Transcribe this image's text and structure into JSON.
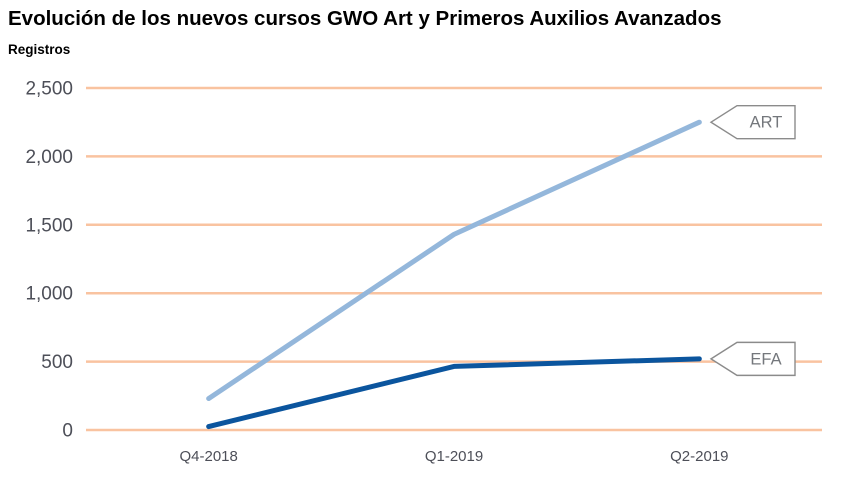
{
  "header": {
    "title": "Evolución de los nuevos cursos GWO Art y Primeros Auxilios Avanzados",
    "subtitle": "Registros"
  },
  "chart_data": {
    "type": "line",
    "title": "Evolución de los nuevos cursos GWO Art y Primeros Auxilios Avanzados",
    "ylabel": "Registros",
    "xlabel": "",
    "categories": [
      "Q4-2018",
      "Q1-2019",
      "Q2-2019"
    ],
    "series": [
      {
        "name": "ART",
        "values": [
          230,
          1430,
          2250
        ],
        "color": "#94b7db"
      },
      {
        "name": "EFA",
        "values": [
          25,
          465,
          520
        ],
        "color": "#0b559e"
      }
    ],
    "ylim": [
      0,
      2500
    ],
    "yticks": [
      0,
      500,
      1000,
      1500,
      2000,
      2500
    ],
    "ytick_labels": [
      "0",
      "500",
      "1,000",
      "1,500",
      "2,000",
      "2,500"
    ],
    "grid": true,
    "gridline_color": "#f9c3a0",
    "legend_position": "line-end-callouts",
    "callout_border_color": "#8b8b8b",
    "callout_text_color": "#74777c",
    "tick_text_color": "#4d4f58"
  }
}
